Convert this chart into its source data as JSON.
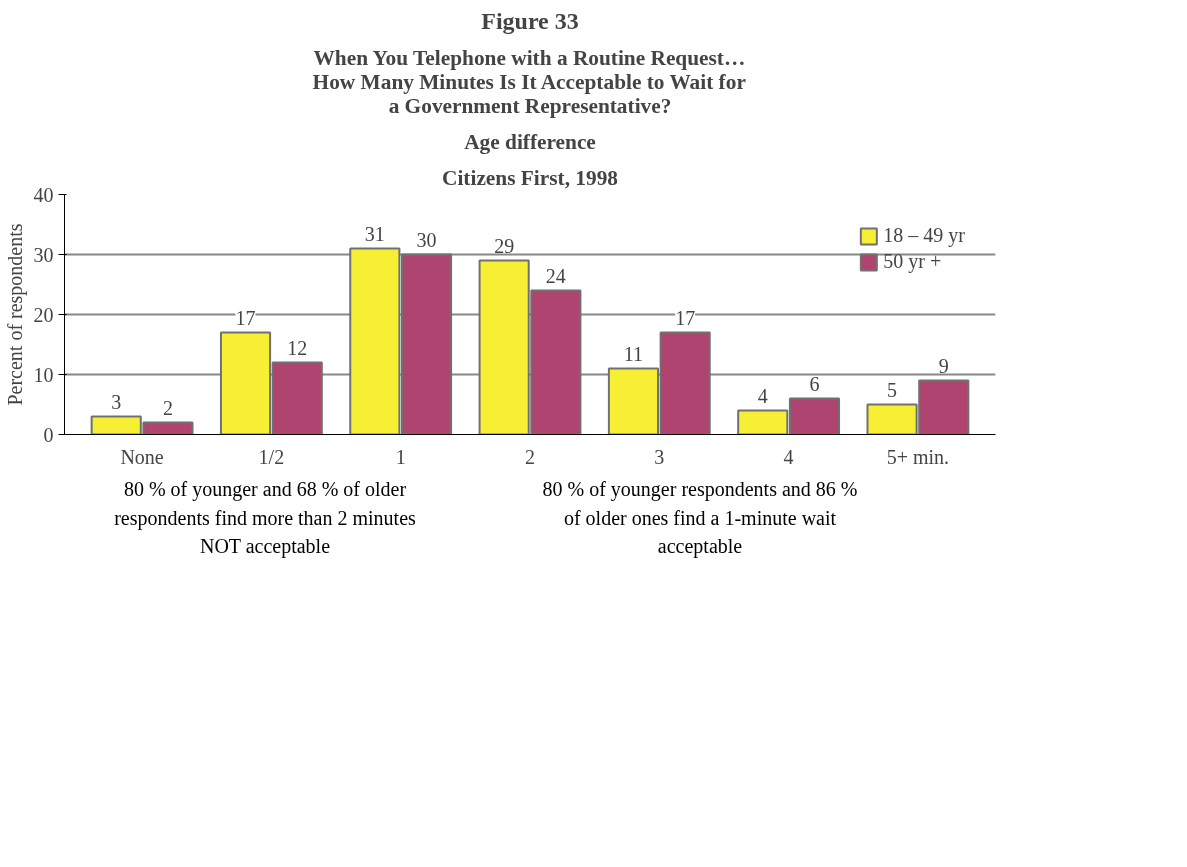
{
  "chart_data": {
    "type": "bar",
    "title": "Figure 33",
    "subtitle": "When You Telephone with a Routine Request…\nHow Many Minutes Is It Acceptable to Wait for\na Government Representative?",
    "categories": [
      "None",
      "1/2",
      "1",
      "2",
      "3",
      "4",
      "5+ min."
    ],
    "series": [
      {
        "name": "18 – 49 yr",
        "color": "#f7ef34",
        "values": [
          3,
          17,
          31,
          29,
          11,
          4,
          5
        ]
      },
      {
        "name": "50 yr +",
        "color": "#b04470",
        "values": [
          2,
          12,
          30,
          24,
          17,
          6,
          9
        ]
      }
    ],
    "ylabel": "Percent of respondents",
    "ylim": [
      0,
      40
    ],
    "yticks": [
      0,
      10,
      20,
      30,
      40
    ],
    "grid": "y",
    "legend": "top right",
    "data_labels": true,
    "annotations": [
      "Age difference",
      "Citizens First, 1998",
      "80 % of younger and 68 % of older respondents find more than 2 minutes NOT acceptable",
      "80 % of younger respondents and 86 % of older ones find a 1-minute wait acceptable"
    ]
  }
}
